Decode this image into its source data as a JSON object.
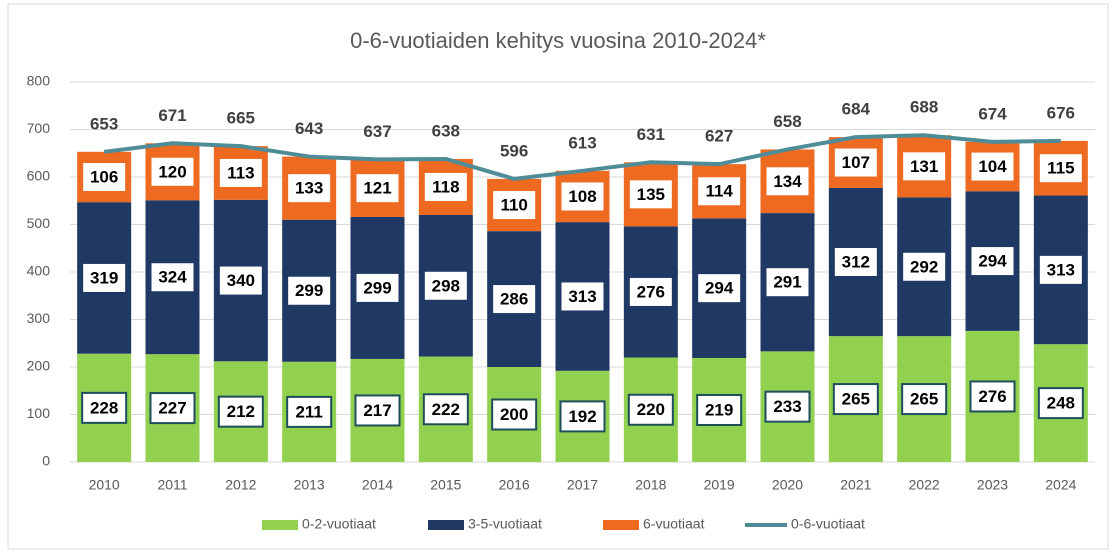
{
  "chart_data": {
    "type": "bar",
    "stacked": true,
    "title": "0-6-vuotiaiden kehitys vuosina 2010-2024*",
    "categories": [
      "2010",
      "2011",
      "2012",
      "2013",
      "2014",
      "2015",
      "2016",
      "2017",
      "2018",
      "2019",
      "2020",
      "2021",
      "2022",
      "2023",
      "2024"
    ],
    "series": [
      {
        "name": "0-2-vuotiaat",
        "color": "#92d050",
        "label_border": "#1e4e5a",
        "values": [
          228,
          227,
          212,
          211,
          217,
          222,
          200,
          192,
          220,
          219,
          233,
          265,
          265,
          276,
          248
        ]
      },
      {
        "name": "3-5-vuotiaat",
        "color": "#1f3864",
        "label_border": "#1f3864",
        "values": [
          319,
          324,
          340,
          299,
          299,
          298,
          286,
          313,
          276,
          294,
          291,
          312,
          292,
          294,
          313
        ]
      },
      {
        "name": "6-vuotiaat",
        "color": "#ee6a21",
        "label_border": "#ee6a21",
        "values": [
          106,
          120,
          113,
          133,
          121,
          118,
          110,
          108,
          135,
          114,
          134,
          107,
          131,
          104,
          115
        ]
      },
      {
        "name": "0-6-vuotiaat",
        "type": "line",
        "color": "#4e8c98",
        "values": [
          653,
          671,
          665,
          643,
          637,
          638,
          596,
          613,
          631,
          627,
          658,
          684,
          688,
          674,
          676
        ]
      }
    ],
    "ylim": [
      0,
      800
    ],
    "yticks": [
      0,
      100,
      200,
      300,
      400,
      500,
      600,
      700,
      800
    ],
    "grid": true,
    "legend": "bottom"
  }
}
